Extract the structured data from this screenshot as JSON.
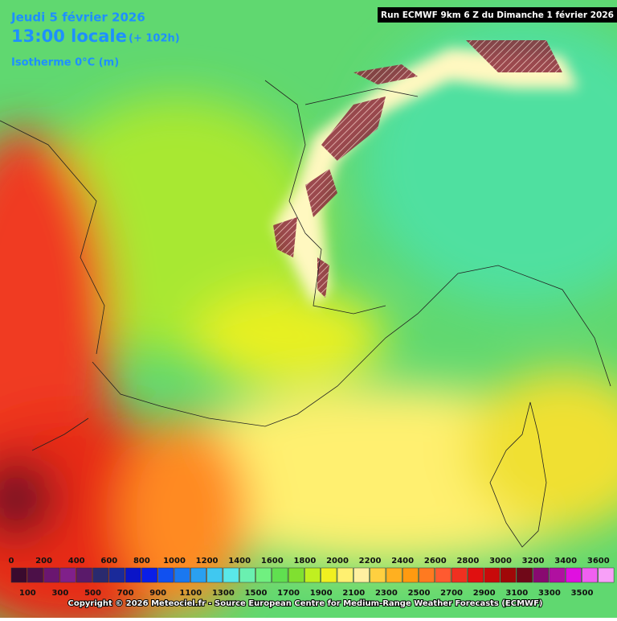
{
  "header": {
    "date": "Jeudi 5 février 2026",
    "time": "13:00 locale",
    "lead": "(+ 102h)",
    "field": "Isotherme 0°C (m)",
    "run": "Run ECMWF 9km 6 Z du Dimanche 1 février 2026"
  },
  "legend": {
    "top_labels": [
      0,
      200,
      400,
      600,
      800,
      1000,
      1200,
      1400,
      1600,
      1800,
      2000,
      2200,
      2400,
      2600,
      2800,
      3000,
      3200,
      3400,
      3600
    ],
    "bottom_labels": [
      100,
      300,
      500,
      700,
      900,
      1100,
      1300,
      1500,
      1700,
      1900,
      2100,
      2300,
      2500,
      2700,
      2900,
      3100,
      3300,
      3500
    ],
    "colors": [
      "#3a0a2e",
      "#4c1048",
      "#6a1670",
      "#80208a",
      "#5a1a6a",
      "#2a2a6e",
      "#1a2a9a",
      "#0a14c8",
      "#0a1ee8",
      "#1050f0",
      "#1a78f0",
      "#2aa0f0",
      "#40c8f0",
      "#5ae8e8",
      "#6af0b0",
      "#70f080",
      "#60e050",
      "#80e030",
      "#c0f020",
      "#f0f020",
      "#fff070",
      "#fff0a0",
      "#ffd040",
      "#ffb020",
      "#ff9a10",
      "#ff7a20",
      "#ff5a30",
      "#f03020",
      "#e01010",
      "#c80a0a",
      "#a00808",
      "#700818",
      "#880a70",
      "#b010a0",
      "#e010e0",
      "#f060f0",
      "#f8a0f8"
    ]
  },
  "footer": {
    "copyright": "Copyright © 2026 Meteociel.fr - Source European Centre for Medium-Range Weather Forecasts (ECMWF)"
  }
}
